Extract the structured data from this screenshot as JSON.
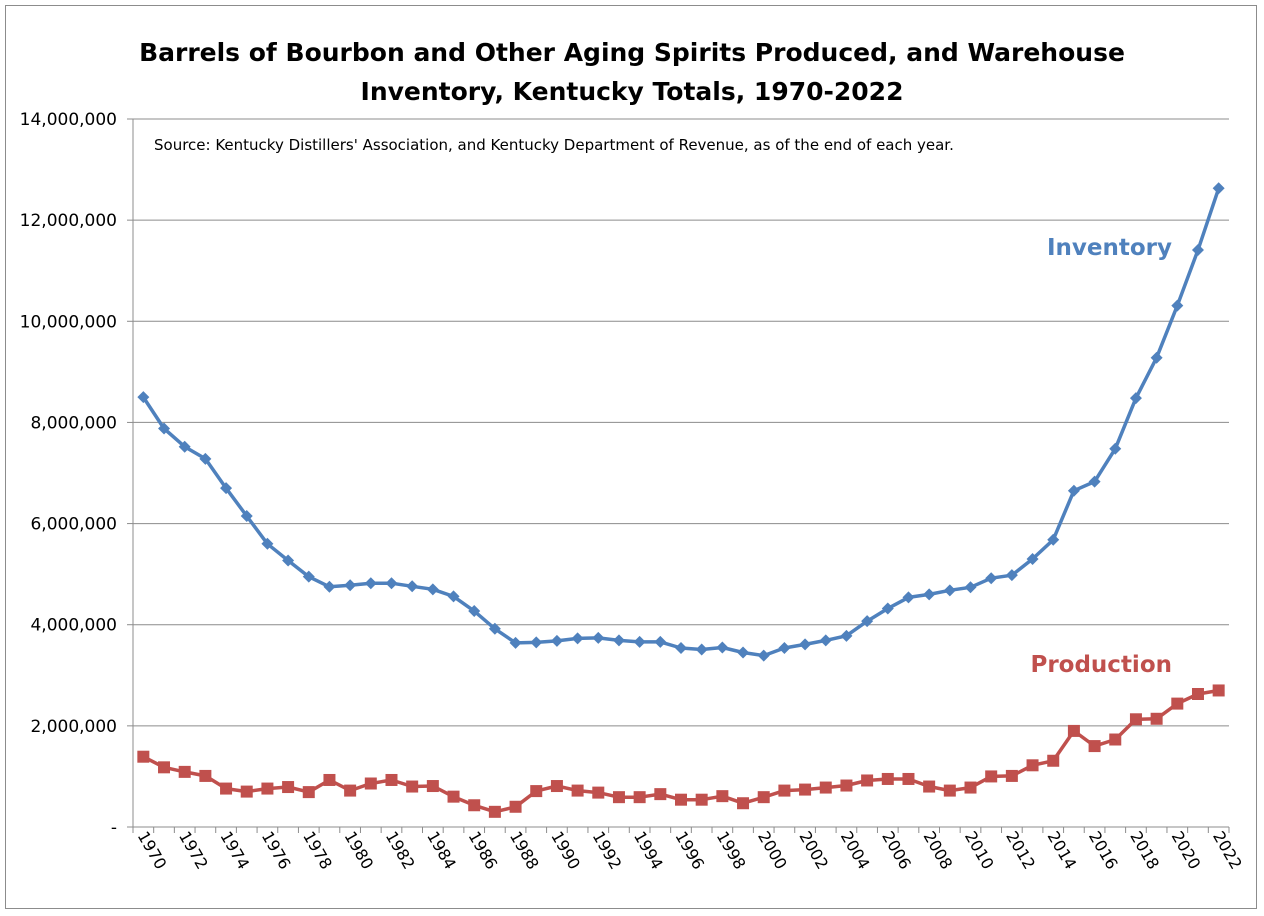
{
  "chart_data": {
    "type": "line",
    "title_line1": "Barrels of Bourbon and Other Aging Spirits Produced, and Warehouse",
    "title_line2": "Inventory, Kentucky Totals, 1970-2022",
    "annotation": "Source: Kentucky Distillers' Association, and Kentucky Department of Revenue, as of the end of each year.",
    "xlabel": "",
    "ylabel": "",
    "ylim": [
      0,
      14000000
    ],
    "y_ticks": [
      {
        "value": 0,
        "label": "-"
      },
      {
        "value": 2000000,
        "label": "2,000,000"
      },
      {
        "value": 4000000,
        "label": "4,000,000"
      },
      {
        "value": 6000000,
        "label": "6,000,000"
      },
      {
        "value": 8000000,
        "label": "8,000,000"
      },
      {
        "value": 10000000,
        "label": "10,000,000"
      },
      {
        "value": 12000000,
        "label": "12,000,000"
      },
      {
        "value": 14000000,
        "label": "14,000,000"
      }
    ],
    "x": [
      1970,
      1971,
      1972,
      1973,
      1974,
      1975,
      1976,
      1977,
      1978,
      1979,
      1980,
      1981,
      1982,
      1983,
      1984,
      1985,
      1986,
      1987,
      1988,
      1989,
      1990,
      1991,
      1992,
      1993,
      1994,
      1995,
      1996,
      1997,
      1998,
      1999,
      2000,
      2001,
      2002,
      2003,
      2004,
      2005,
      2006,
      2007,
      2008,
      2009,
      2010,
      2011,
      2012,
      2013,
      2014,
      2015,
      2016,
      2017,
      2018,
      2019,
      2020,
      2021,
      2022
    ],
    "x_tick_labels": [
      "1970",
      "1972",
      "1974",
      "1976",
      "1978",
      "1980",
      "1982",
      "1984",
      "1986",
      "1988",
      "1990",
      "1992",
      "1994",
      "1996",
      "1998",
      "2000",
      "2002",
      "2004",
      "2006",
      "2008",
      "2010",
      "2012",
      "2014",
      "2016",
      "2018",
      "2020",
      "2022"
    ],
    "grid": true,
    "legend": "none",
    "series": [
      {
        "name": "Inventory",
        "color": "#4f81bd",
        "marker": "diamond",
        "values": [
          8500000,
          7880000,
          7520000,
          7280000,
          6700000,
          6150000,
          5600000,
          5270000,
          4950000,
          4750000,
          4780000,
          4820000,
          4820000,
          4760000,
          4700000,
          4560000,
          4270000,
          3920000,
          3640000,
          3650000,
          3680000,
          3730000,
          3740000,
          3690000,
          3660000,
          3660000,
          3540000,
          3510000,
          3550000,
          3450000,
          3390000,
          3540000,
          3610000,
          3690000,
          3780000,
          4070000,
          4320000,
          4540000,
          4600000,
          4680000,
          4740000,
          4920000,
          4980000,
          5300000,
          5680000,
          6650000,
          6830000,
          7480000,
          8480000,
          9280000,
          10310000,
          11410000,
          12630000
        ]
      },
      {
        "name": "Production",
        "color": "#c0504d",
        "marker": "square",
        "values": [
          1390000,
          1180000,
          1090000,
          1010000,
          760000,
          700000,
          760000,
          790000,
          690000,
          930000,
          720000,
          860000,
          930000,
          800000,
          810000,
          600000,
          430000,
          300000,
          400000,
          710000,
          810000,
          720000,
          680000,
          590000,
          590000,
          650000,
          540000,
          540000,
          610000,
          470000,
          590000,
          720000,
          740000,
          780000,
          820000,
          920000,
          950000,
          950000,
          800000,
          720000,
          780000,
          1000000,
          1010000,
          1220000,
          1310000,
          1900000,
          1600000,
          1730000,
          2130000,
          2140000,
          2440000,
          2630000,
          2700000
        ]
      }
    ]
  }
}
